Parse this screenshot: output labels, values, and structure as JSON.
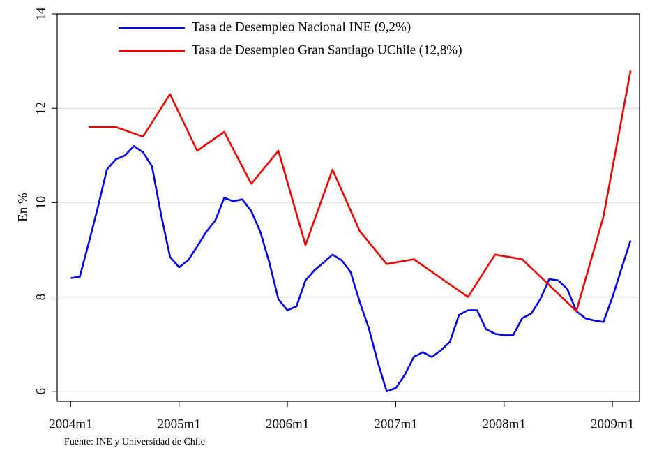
{
  "chart_data": {
    "type": "line",
    "ylabel": "En %",
    "note": "Fuente: INE y Universidad de Chile",
    "xlim": [
      526.5,
      591
    ],
    "ylim": [
      5.79,
      14
    ],
    "xticks": [
      {
        "value": 528,
        "label": "2004m1"
      },
      {
        "value": 540,
        "label": "2005m1"
      },
      {
        "value": 552,
        "label": "2006m1"
      },
      {
        "value": 564,
        "label": "2007m1"
      },
      {
        "value": 576,
        "label": "2008m1"
      },
      {
        "value": 588,
        "label": "2009m1"
      }
    ],
    "yticks": [
      6,
      8,
      10,
      12,
      14
    ],
    "grid": true,
    "series": [
      {
        "name": "Tasa de Desempleo Nacional INE (9,2%)",
        "color": "#0000ee",
        "x": [
          528,
          529,
          530,
          531,
          532,
          533,
          534,
          535,
          536,
          537,
          538,
          539,
          540,
          541,
          542,
          543,
          544,
          545,
          546,
          547,
          548,
          549,
          550,
          551,
          552,
          553,
          554,
          555,
          556,
          557,
          558,
          559,
          560,
          561,
          562,
          563,
          564,
          565,
          566,
          567,
          568,
          569,
          570,
          571,
          572,
          573,
          574,
          575,
          576,
          577,
          578,
          579,
          580,
          581,
          582,
          583,
          584,
          585,
          586,
          587,
          588,
          589,
          590
        ],
        "values": [
          8.4,
          8.43,
          9.15,
          9.9,
          10.7,
          10.92,
          11.0,
          11.2,
          11.07,
          10.77,
          9.75,
          8.85,
          8.63,
          8.78,
          9.07,
          9.38,
          9.62,
          10.1,
          10.03,
          10.07,
          9.82,
          9.38,
          8.73,
          7.95,
          7.72,
          7.8,
          8.35,
          8.57,
          8.73,
          8.9,
          8.78,
          8.53,
          7.9,
          7.35,
          6.62,
          6.0,
          6.07,
          6.35,
          6.73,
          6.83,
          6.73,
          6.87,
          7.05,
          7.62,
          7.72,
          7.72,
          7.32,
          7.22,
          7.19,
          7.19,
          7.55,
          7.65,
          7.95,
          8.38,
          8.35,
          8.17,
          7.7,
          7.55,
          7.5,
          7.47,
          8.0,
          8.6,
          9.2
        ]
      },
      {
        "name": "Tasa de Desempleo Gran Santiago UChile (12,8%)",
        "color": "#ee0000",
        "x": [
          530,
          533,
          536,
          539,
          542,
          545,
          548,
          551,
          554,
          557,
          560,
          563,
          566,
          569,
          572,
          575,
          578,
          581,
          584,
          587,
          590
        ],
        "values": [
          11.6,
          11.6,
          11.4,
          12.3,
          11.1,
          11.5,
          10.4,
          11.1,
          9.1,
          10.7,
          9.4,
          8.7,
          8.8,
          8.4,
          8.0,
          8.9,
          8.8,
          8.25,
          7.7,
          9.7,
          12.8
        ]
      }
    ]
  }
}
